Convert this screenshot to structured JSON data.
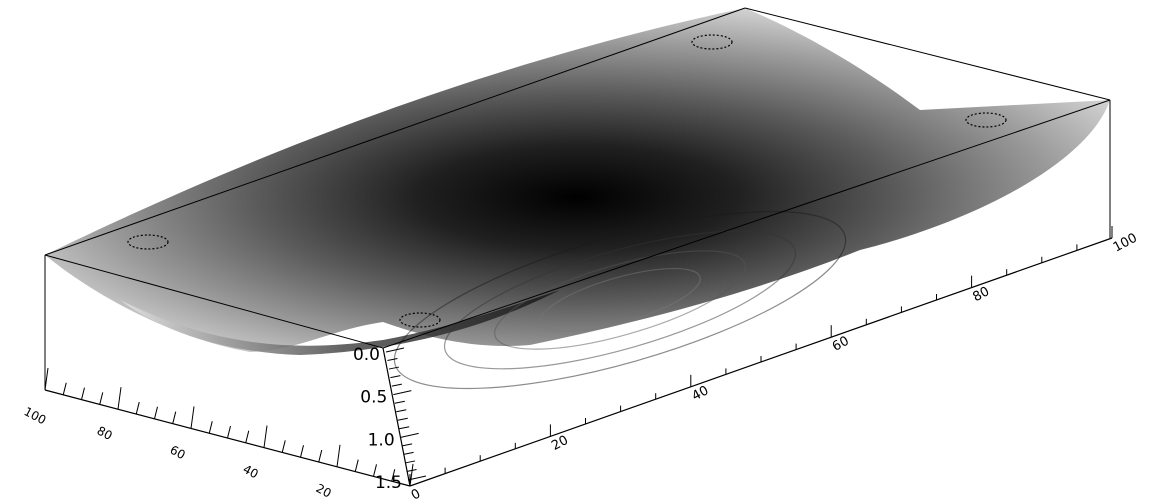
{
  "chart_data": {
    "type": "surface",
    "title": "",
    "shading": "grayscale, darker = larger depth",
    "x_axis": {
      "range": [
        0,
        100
      ],
      "ticks": [
        0,
        20,
        40,
        60,
        80,
        100
      ],
      "tick_labels": [
        "0",
        "20",
        "40",
        "60",
        "80",
        "100"
      ]
    },
    "y_axis": {
      "range": [
        0,
        100
      ],
      "ticks": [
        20,
        40,
        60,
        80,
        100
      ],
      "tick_labels": [
        "20",
        "40",
        "60",
        "80",
        "100"
      ]
    },
    "z_axis": {
      "range": [
        0.0,
        1.5
      ],
      "ticks": [
        0.0,
        0.5,
        1.0,
        1.5
      ],
      "tick_labels": [
        "0.0",
        "0.5",
        "1.0",
        "1.5"
      ],
      "direction": "increasing downward"
    },
    "surface": {
      "description": "Saddle-shaped surface, zero at the four corners, deepest (~1.5) near center",
      "corner_markers": [
        [
          0,
          0
        ],
        [
          100,
          0
        ],
        [
          0,
          100
        ],
        [
          100,
          100
        ]
      ],
      "x_samples": [
        0,
        20,
        40,
        60,
        80,
        100
      ],
      "y_samples": [
        0,
        20,
        40,
        60,
        80,
        100
      ],
      "z_grid": [
        [
          0.0,
          0.35,
          0.55,
          0.55,
          0.35,
          0.0
        ],
        [
          0.35,
          0.8,
          1.05,
          1.05,
          0.8,
          0.35
        ],
        [
          0.55,
          1.05,
          1.45,
          1.45,
          1.05,
          0.55
        ],
        [
          0.55,
          1.05,
          1.45,
          1.45,
          1.05,
          0.55
        ],
        [
          0.35,
          0.8,
          1.05,
          1.05,
          0.8,
          0.35
        ],
        [
          0.0,
          0.35,
          0.55,
          0.55,
          0.35,
          0.0
        ]
      ]
    }
  }
}
